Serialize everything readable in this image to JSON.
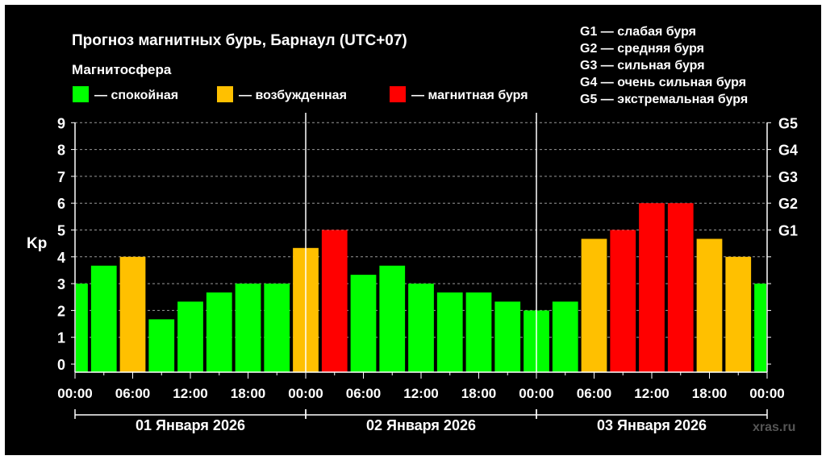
{
  "chart_data": {
    "type": "bar",
    "title": "Прогноз магнитных бурь, Барнаул (UTC+07)",
    "ylabel": "Kp",
    "ylim": [
      0,
      9
    ],
    "yticks": [
      0,
      1,
      2,
      3,
      4,
      5,
      6,
      7,
      8,
      9
    ],
    "right_axis": [
      {
        "label": "G1",
        "kp": 5
      },
      {
        "label": "G2",
        "kp": 6
      },
      {
        "label": "G3",
        "kp": 7
      },
      {
        "label": "G4",
        "kp": 8
      },
      {
        "label": "G5",
        "kp": 9
      }
    ],
    "x_tick_labels": [
      "00:00",
      "06:00",
      "12:00",
      "18:00",
      "00:00",
      "06:00",
      "12:00",
      "18:00",
      "00:00",
      "06:00",
      "12:00",
      "18:00",
      "00:00"
    ],
    "days": [
      "01 Января 2026",
      "02 Января 2026",
      "03 Января 2026"
    ],
    "interval_hours": 3,
    "values": [
      3.0,
      3.67,
      4.0,
      1.67,
      2.33,
      2.67,
      3.0,
      3.0,
      4.33,
      5.0,
      3.33,
      3.67,
      3.0,
      2.67,
      2.67,
      2.33,
      2.0,
      2.33,
      4.67,
      5.0,
      6.0,
      6.0,
      4.67,
      4.0,
      3.0
    ],
    "legend_title": "Магнитосфера",
    "legend": [
      {
        "label": "— спокойная",
        "color": "#00ff00"
      },
      {
        "label": "— возбужденная",
        "color": "#ffc000"
      },
      {
        "label": "— магнитная буря",
        "color": "#ff0000"
      }
    ],
    "storm_levels": [
      "G1 — слабая буря",
      "G2 — средняя буря",
      "G3 — сильная буря",
      "G4 — очень сильная буря",
      "G5 — экстремальная буря"
    ],
    "colors": {
      "quiet": "#00ff00",
      "active": "#ffc000",
      "storm": "#ff0000",
      "background": "#000000"
    },
    "grid": true,
    "watermark": "xras.ru"
  }
}
